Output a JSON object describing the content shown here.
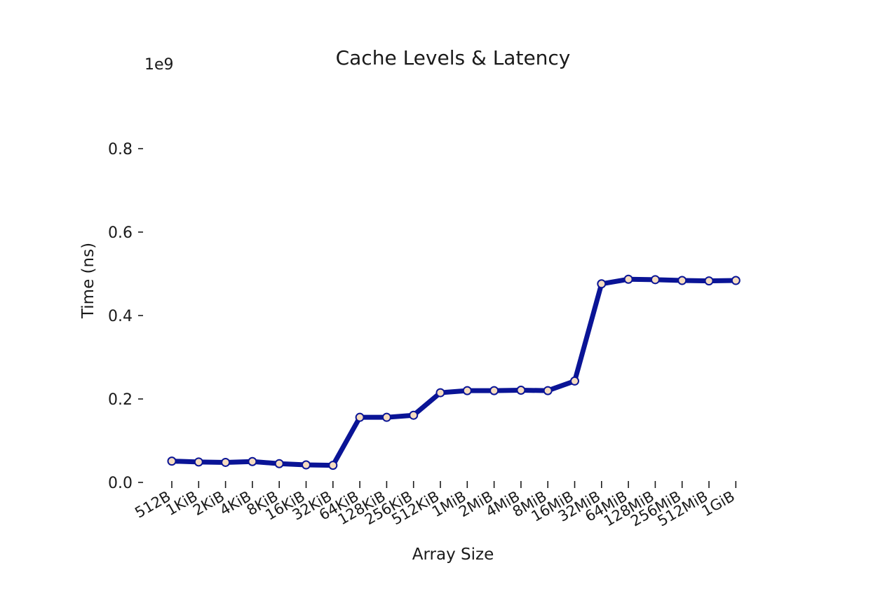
{
  "chart_data": {
    "type": "line",
    "title": "Cache Levels & Latency",
    "xlabel": "Array Size",
    "ylabel": "Time (ns)",
    "y_multiplier": "1e9",
    "ylim": [
      0.0,
      0.9
    ],
    "yticks": [
      "0.0",
      "0.2",
      "0.4",
      "0.6",
      "0.8"
    ],
    "ytick_values": [
      0.0,
      0.2,
      0.4,
      0.6,
      0.8
    ],
    "categories": [
      "512B",
      "1KiB",
      "2KiB",
      "4KiB",
      "8KiB",
      "16KiB",
      "32KiB",
      "64KiB",
      "128KiB",
      "256KiB",
      "512KiB",
      "1MiB",
      "2MiB",
      "4MiB",
      "8MiB",
      "16MiB",
      "32MiB",
      "64MiB",
      "128MiB",
      "256MiB",
      "512MiB",
      "1GiB"
    ],
    "series": [
      {
        "values": [
          0.051,
          0.049,
          0.048,
          0.05,
          0.045,
          0.042,
          0.041,
          0.156,
          0.156,
          0.161,
          0.215,
          0.22,
          0.22,
          0.221,
          0.22,
          0.243,
          0.476,
          0.487,
          0.486,
          0.484,
          0.483,
          0.484
        ],
        "color": "#0a1496",
        "marker_face": "#f5dcc0",
        "marker_edge": "#0a1496"
      }
    ],
    "grid": false,
    "legend": "none"
  }
}
